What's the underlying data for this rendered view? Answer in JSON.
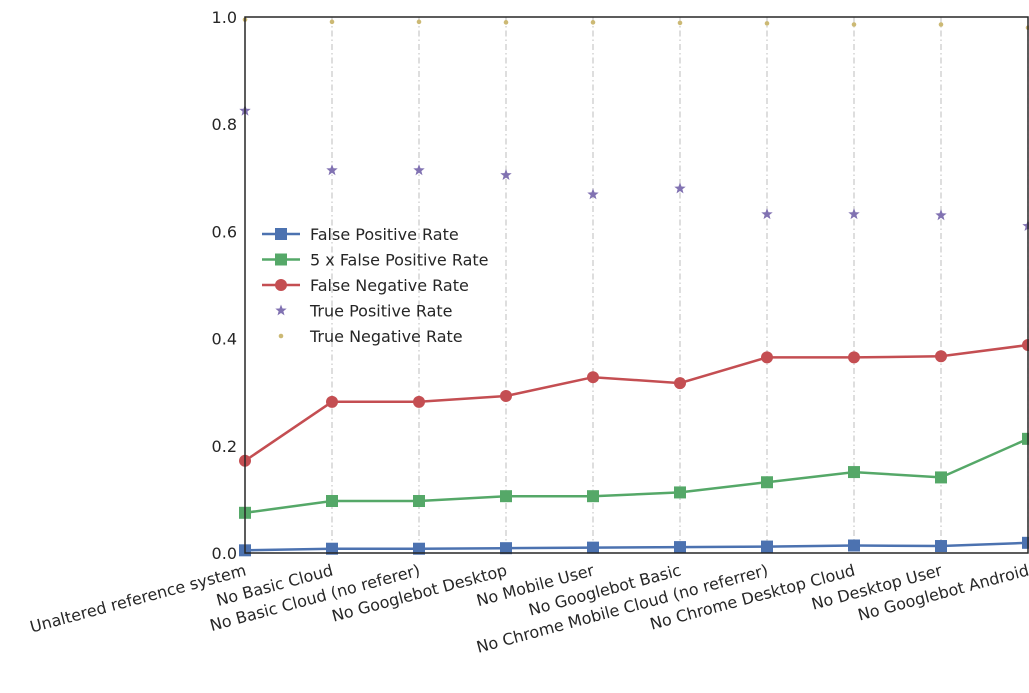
{
  "chart_data": {
    "type": "line",
    "categories": [
      "Unaltered reference system",
      "No Basic Cloud",
      "No Basic Cloud (no referer)",
      "No Googlebot Desktop",
      "No Mobile User",
      "No Googlebot Basic",
      "No Chrome Mobile Cloud (no referrer)",
      "No Chrome Desktop Cloud",
      "No Desktop User",
      "No Googlebot Android"
    ],
    "ylim": [
      0.0,
      1.0
    ],
    "yticks": [
      "0.0",
      "0.2",
      "0.4",
      "0.6",
      "0.8",
      "1.0"
    ],
    "legend_position": "center-left",
    "series": [
      {
        "name": "False Positive Rate",
        "marker": "square",
        "line": true,
        "color": "#4c72b0",
        "values": [
          0.005,
          0.008,
          0.008,
          0.009,
          0.01,
          0.011,
          0.012,
          0.014,
          0.013,
          0.019
        ]
      },
      {
        "name": "5 x False Positive Rate",
        "marker": "square",
        "line": true,
        "color": "#55a868",
        "values": [
          0.075,
          0.097,
          0.097,
          0.106,
          0.106,
          0.113,
          0.132,
          0.151,
          0.141,
          0.213
        ]
      },
      {
        "name": "False Negative Rate",
        "marker": "circle",
        "line": true,
        "color": "#c44e52",
        "values": [
          0.172,
          0.282,
          0.282,
          0.293,
          0.328,
          0.317,
          0.365,
          0.365,
          0.367,
          0.388
        ]
      },
      {
        "name": "True Positive Rate",
        "marker": "star",
        "line": false,
        "color": "#8172b2",
        "values": [
          0.825,
          0.714,
          0.714,
          0.705,
          0.669,
          0.68,
          0.632,
          0.632,
          0.63,
          0.61
        ]
      },
      {
        "name": "True Negative Rate",
        "marker": "dot",
        "line": false,
        "color": "#ccb974",
        "values": [
          0.995,
          0.991,
          0.991,
          0.99,
          0.99,
          0.989,
          0.988,
          0.986,
          0.986,
          0.98
        ]
      }
    ]
  }
}
